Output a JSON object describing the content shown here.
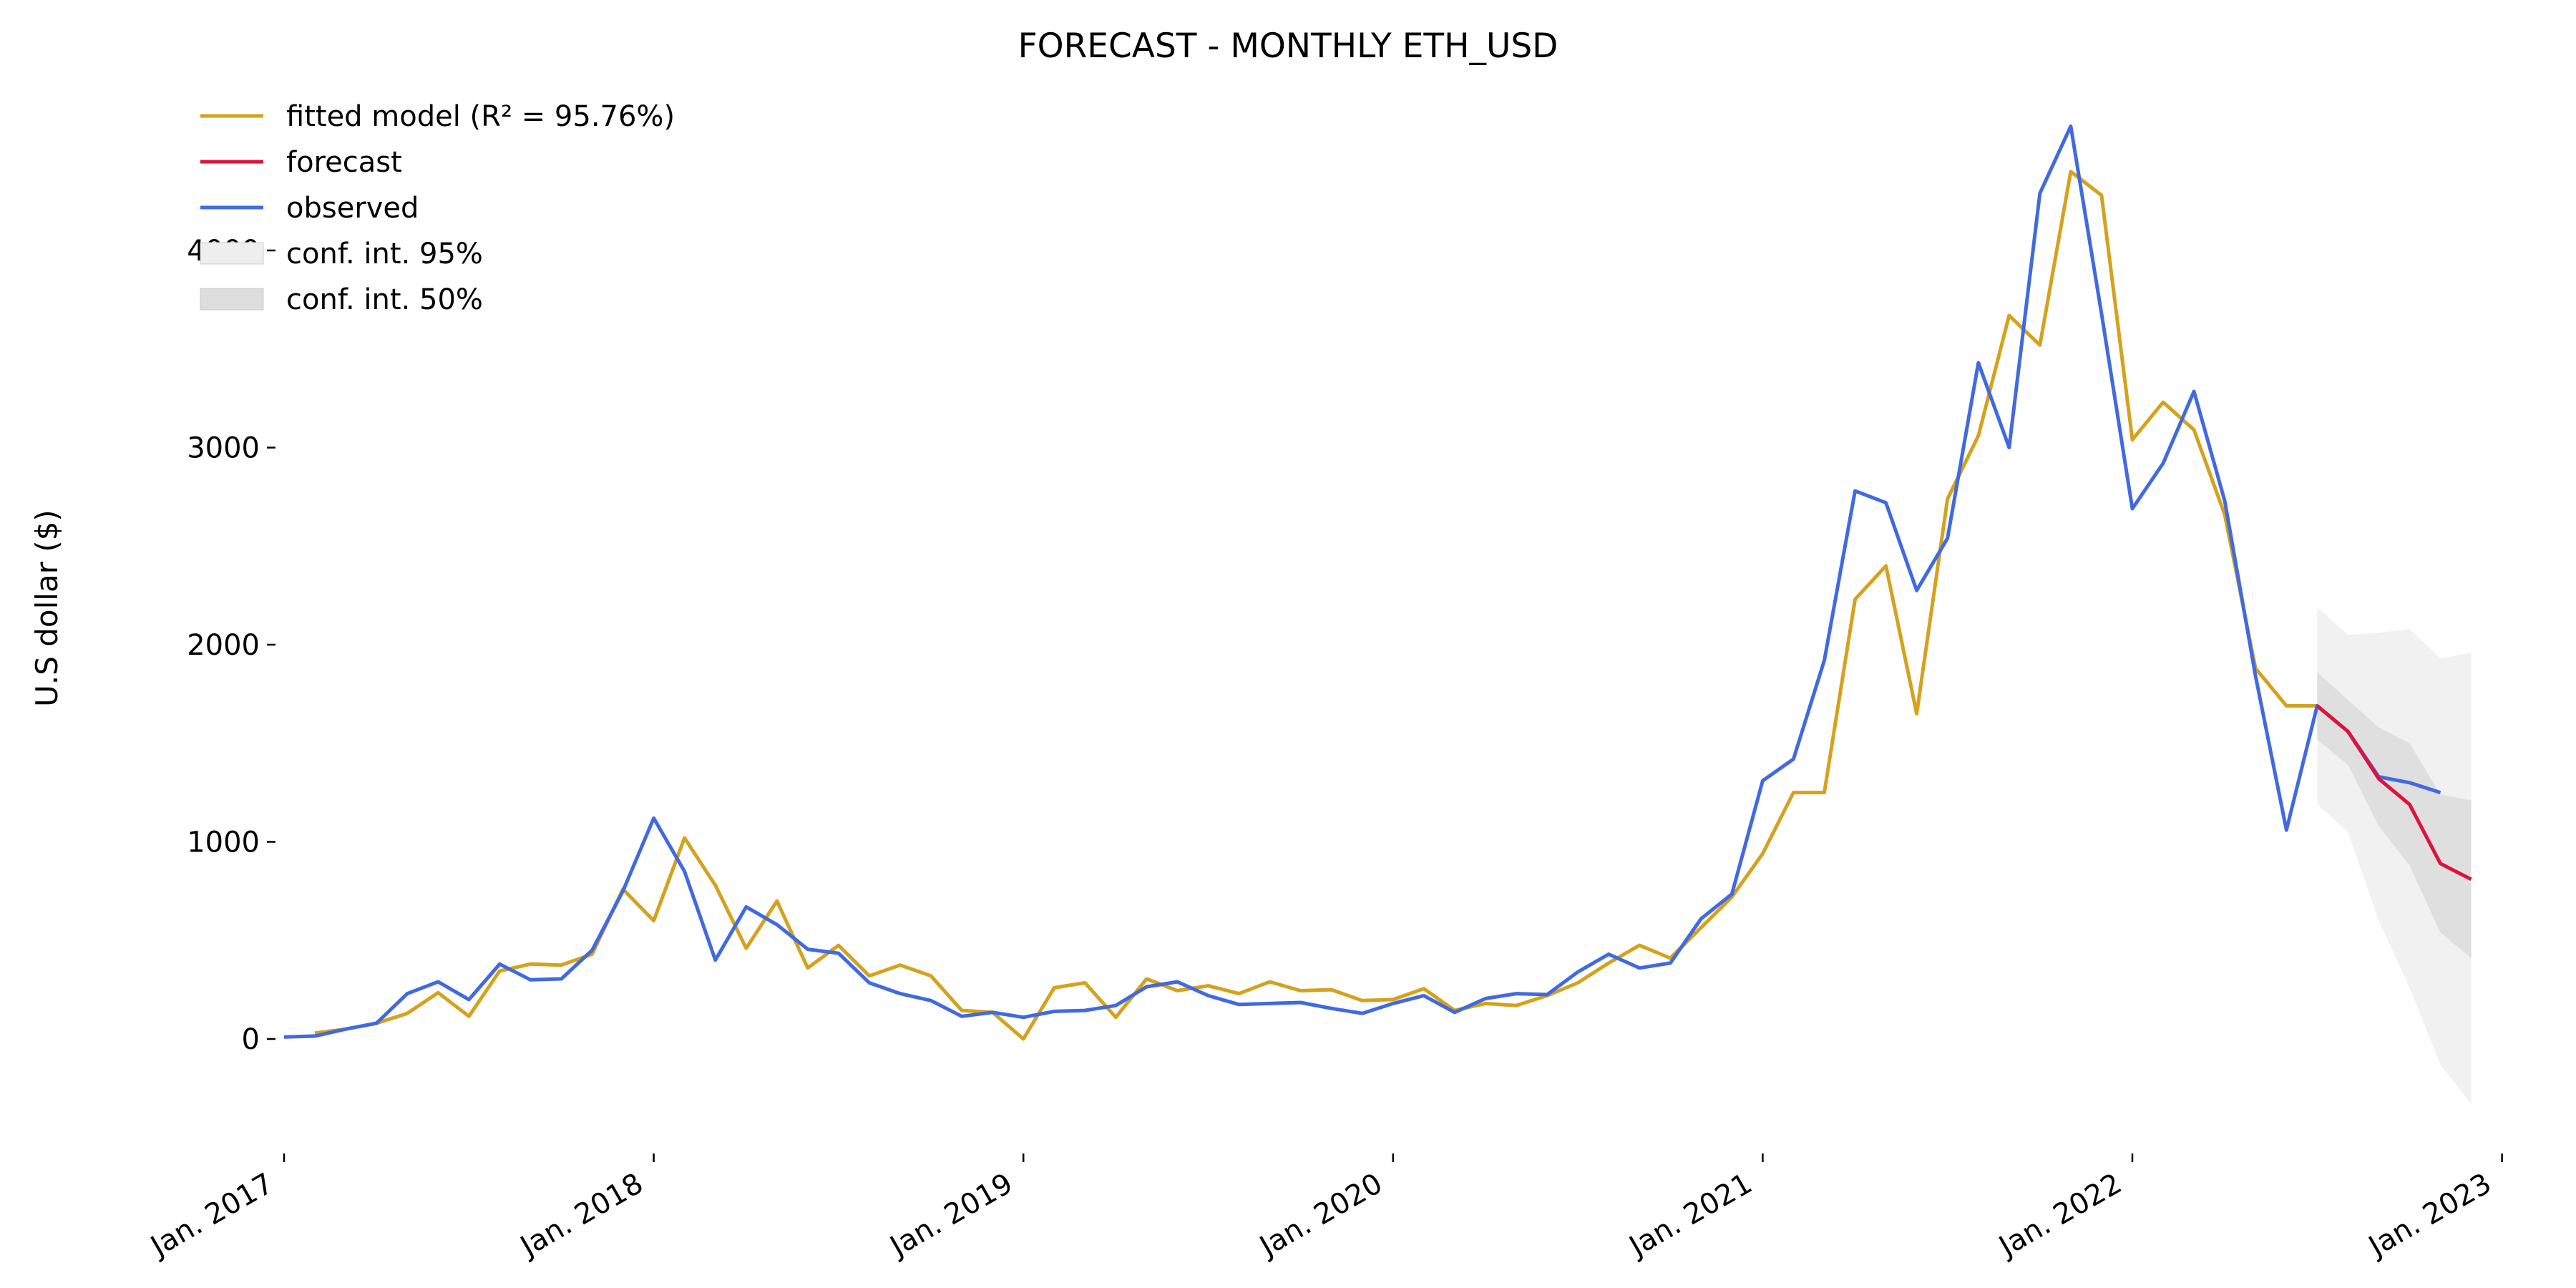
{
  "chart_data": {
    "type": "line",
    "title": "FORECAST - MONTHLY ETH_USD",
    "ylabel": "U.S dollar ($)",
    "xlabel": "",
    "xlim": [
      "2017-01",
      "2022-12"
    ],
    "ylim": [
      -600,
      4700
    ],
    "yticks": [
      0,
      1000,
      2000,
      3000,
      4000
    ],
    "xticks": [
      {
        "date": "2017-01",
        "label": "Jan. 2017"
      },
      {
        "date": "2018-01",
        "label": "Jan. 2018"
      },
      {
        "date": "2019-01",
        "label": "Jan. 2019"
      },
      {
        "date": "2020-01",
        "label": "Jan. 2020"
      },
      {
        "date": "2021-01",
        "label": "Jan. 2021"
      },
      {
        "date": "2022-01",
        "label": "Jan. 2022"
      },
      {
        "date": "2023-01",
        "label": "Jan. 2023"
      }
    ],
    "grid": false,
    "legend": {
      "placement": "top-left",
      "entries": [
        {
          "label": "fitted model (R² = 95.76%)",
          "kind": "line",
          "color": "#d4a21d"
        },
        {
          "label": "forecast",
          "kind": "line",
          "color": "#dc143c"
        },
        {
          "label": "observed",
          "kind": "line",
          "color": "#4169e1"
        },
        {
          "label": "conf. int. 95%",
          "kind": "band",
          "color": "#eeeeee"
        },
        {
          "label": "conf. int. 50%",
          "kind": "band",
          "color": "#dddddd"
        }
      ]
    },
    "series": [
      {
        "name": "observed",
        "color": "#4169e1",
        "start": "2017-01",
        "values": [
          10,
          15,
          50,
          80,
          230,
          290,
          200,
          380,
          300,
          305,
          450,
          750,
          1120,
          850,
          400,
          670,
          580,
          455,
          435,
          285,
          230,
          195,
          115,
          135,
          110,
          140,
          145,
          170,
          265,
          290,
          220,
          175,
          180,
          185,
          155,
          130,
          180,
          220,
          135,
          205,
          230,
          225,
          340,
          430,
          360,
          385,
          610,
          735,
          1310,
          1420,
          1920,
          2780,
          2720,
          2275,
          2540,
          3430,
          3000,
          4290,
          4630,
          3680,
          2690,
          2920,
          3285,
          2730,
          1840,
          1060,
          1690,
          1560,
          1330,
          1300,
          1250
        ]
      },
      {
        "name": "fitted model (R² = 95.76%)",
        "color": "#d4a21d",
        "start": "2017-02",
        "values": [
          30,
          50,
          80,
          130,
          235,
          115,
          345,
          380,
          375,
          430,
          760,
          600,
          1020,
          780,
          460,
          700,
          360,
          475,
          320,
          375,
          320,
          145,
          135,
          0,
          260,
          285,
          110,
          305,
          245,
          270,
          230,
          290,
          245,
          250,
          195,
          200,
          255,
          145,
          180,
          170,
          220,
          285,
          385,
          475,
          410,
          565,
          720,
          940,
          1250,
          1250,
          2230,
          2400,
          1650,
          2740,
          3060,
          3670,
          3520,
          4400,
          4280,
          3040,
          3230,
          3090,
          2660,
          1880,
          1690,
          1690
        ]
      },
      {
        "name": "forecast",
        "color": "#dc143c",
        "start": "2022-07",
        "values": [
          1690,
          1560,
          1320,
          1190,
          890,
          810
        ]
      }
    ],
    "bands": [
      {
        "name": "conf. int. 95%",
        "color": "#eeeeee",
        "start": "2022-07",
        "upper": [
          2190,
          2050,
          2060,
          2080,
          1930,
          1960
        ],
        "lower": [
          1190,
          1050,
          600,
          260,
          -130,
          -330
        ]
      },
      {
        "name": "conf. int. 50%",
        "color": "#dcdcdc",
        "start": "2022-07",
        "upper": [
          1860,
          1720,
          1580,
          1500,
          1240,
          1210
        ],
        "lower": [
          1520,
          1390,
          1080,
          880,
          540,
          410
        ]
      }
    ]
  }
}
